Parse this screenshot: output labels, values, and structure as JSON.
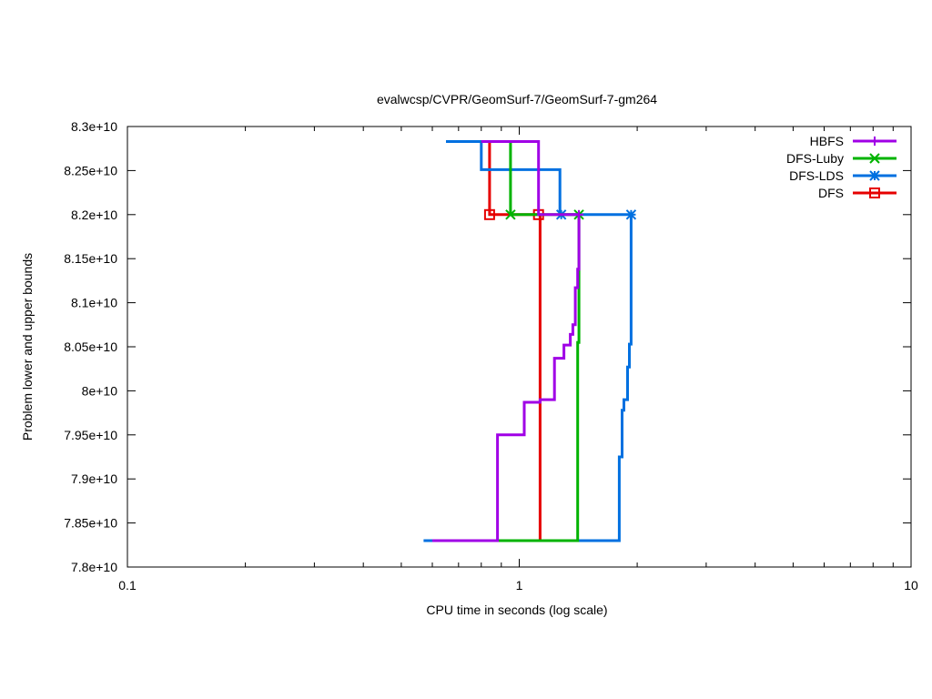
{
  "chart_data": {
    "type": "line",
    "title": "evalwcsp/CVPR/GeomSurf-7/GeomSurf-7-gm264",
    "xlabel": "CPU time in seconds (log scale)",
    "ylabel": "Problem lower and upper bounds",
    "x_scale": "log",
    "xlim": [
      0.1,
      10
    ],
    "ylim": [
      78000000000,
      83000000000
    ],
    "x_ticks": [
      0.1,
      1,
      10
    ],
    "x_tick_labels": [
      "0.1",
      "1",
      "10"
    ],
    "y_ticks": [
      78000000000,
      78500000000,
      79000000000,
      79500000000,
      80000000000,
      80500000000,
      81000000000,
      81500000000,
      82000000000,
      82500000000,
      83000000000
    ],
    "y_tick_labels": [
      "7.8e+10",
      "7.85e+10",
      "7.9e+10",
      "7.95e+10",
      "8e+10",
      "8.05e+10",
      "8.1e+10",
      "8.15e+10",
      "8.2e+10",
      "8.25e+10",
      "8.3e+10"
    ],
    "grid": false,
    "legend_position": "top-right",
    "series": [
      {
        "name": "HBFS",
        "color": "#a000e6",
        "marker": "plus",
        "upper": [
          [
            0.8,
            82830000000
          ],
          [
            1.12,
            82830000000
          ],
          [
            1.12,
            82000000000
          ],
          [
            1.42,
            82000000000
          ]
        ],
        "lower": [
          [
            0.6,
            78300000000
          ],
          [
            0.88,
            78300000000
          ],
          [
            0.88,
            79500000000
          ],
          [
            1.03,
            79500000000
          ],
          [
            1.03,
            79870000000
          ],
          [
            1.13,
            79870000000
          ],
          [
            1.13,
            79900000000
          ],
          [
            1.23,
            79900000000
          ],
          [
            1.23,
            80370000000
          ],
          [
            1.3,
            80370000000
          ],
          [
            1.3,
            80520000000
          ],
          [
            1.35,
            80520000000
          ],
          [
            1.35,
            80640000000
          ],
          [
            1.37,
            80640000000
          ],
          [
            1.37,
            80750000000
          ],
          [
            1.39,
            80750000000
          ],
          [
            1.39,
            81170000000
          ],
          [
            1.41,
            81170000000
          ],
          [
            1.41,
            81380000000
          ],
          [
            1.42,
            81380000000
          ],
          [
            1.42,
            82000000000
          ]
        ],
        "marker_points": [
          [
            1.42,
            82000000000
          ]
        ]
      },
      {
        "name": "DFS-Luby",
        "color": "#00b300",
        "marker": "cross",
        "upper": [
          [
            0.8,
            82830000000
          ],
          [
            0.95,
            82830000000
          ],
          [
            0.95,
            82000000000
          ],
          [
            1.42,
            82000000000
          ]
        ],
        "lower": [
          [
            0.6,
            78300000000
          ],
          [
            1.41,
            78300000000
          ],
          [
            1.41,
            80550000000
          ],
          [
            1.42,
            80550000000
          ],
          [
            1.42,
            82000000000
          ]
        ],
        "marker_points": [
          [
            0.95,
            82000000000
          ],
          [
            1.42,
            82000000000
          ]
        ]
      },
      {
        "name": "DFS-LDS",
        "color": "#0070e0",
        "marker": "star",
        "upper": [
          [
            0.65,
            82830000000
          ],
          [
            0.8,
            82830000000
          ],
          [
            0.8,
            82510000000
          ],
          [
            1.27,
            82510000000
          ],
          [
            1.27,
            82000000000
          ],
          [
            1.93,
            82000000000
          ]
        ],
        "lower": [
          [
            0.57,
            78300000000
          ],
          [
            1.8,
            78300000000
          ],
          [
            1.8,
            79250000000
          ],
          [
            1.83,
            79250000000
          ],
          [
            1.83,
            79780000000
          ],
          [
            1.85,
            79780000000
          ],
          [
            1.85,
            79900000000
          ],
          [
            1.89,
            79900000000
          ],
          [
            1.89,
            80270000000
          ],
          [
            1.91,
            80270000000
          ],
          [
            1.91,
            80530000000
          ],
          [
            1.93,
            80530000000
          ],
          [
            1.93,
            82000000000
          ]
        ],
        "marker_points": [
          [
            1.28,
            82000000000
          ],
          [
            1.93,
            82000000000
          ]
        ]
      },
      {
        "name": "DFS",
        "color": "#e60000",
        "marker": "square",
        "upper": [
          [
            0.8,
            82830000000
          ],
          [
            0.84,
            82830000000
          ],
          [
            0.84,
            82000000000
          ],
          [
            1.13,
            82000000000
          ]
        ],
        "lower": [
          [
            0.6,
            78300000000
          ],
          [
            1.13,
            78300000000
          ],
          [
            1.13,
            82000000000
          ]
        ],
        "marker_points": [
          [
            0.84,
            82000000000
          ],
          [
            1.12,
            82000000000
          ]
        ]
      }
    ]
  }
}
